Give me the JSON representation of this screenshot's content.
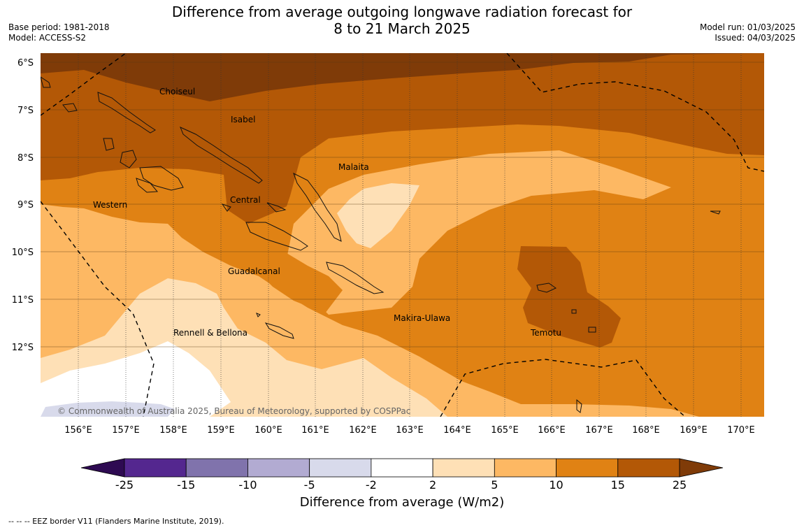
{
  "title_line1": "Difference from average outgoing longwave radiation forecast for",
  "title_line2": "8 to 21 March 2025",
  "base_period": "Base period: 1981-2018",
  "model": "Model: ACCESS-S2",
  "model_run": "Model run: 01/03/2025",
  "issued": "Issued: 04/03/2025",
  "copyright": "© Commonwealth of Australia 2025, Bureau of Meteorology, supported by COSPPac",
  "lat_labels": [
    "6°S",
    "7°S",
    "8°S",
    "9°S",
    "10°S",
    "11°S",
    "12°S"
  ],
  "lon_labels": [
    "156°E",
    "157°E",
    "158°E",
    "159°E",
    "160°E",
    "161°E",
    "162°E",
    "163°E",
    "164°E",
    "165°E",
    "166°E",
    "167°E",
    "168°E",
    "169°E",
    "170°E"
  ],
  "region_labels": [
    "Choiseul",
    "Isabel",
    "Malaita",
    "Western",
    "Central",
    "Guadalcanal",
    "Rennell & Bellona",
    "Makira-Ulawa",
    "Temotu"
  ],
  "colorbar": {
    "ticks": [
      "-25",
      "-15",
      "-10",
      "-5",
      "-2",
      "2",
      "5",
      "10",
      "15",
      "25"
    ],
    "colors": [
      "#2e0a52",
      "#54278f",
      "#8073ac",
      "#b2abd2",
      "#d8daeb",
      "#ffffff",
      "#fee0b6",
      "#fdb863",
      "#e08214",
      "#b35806",
      "#7f3b08"
    ],
    "title": "Difference from average (W/m2)"
  },
  "footer": "--  --  -- EEZ border V11 (Flanders Marine Institute, 2019)."
}
